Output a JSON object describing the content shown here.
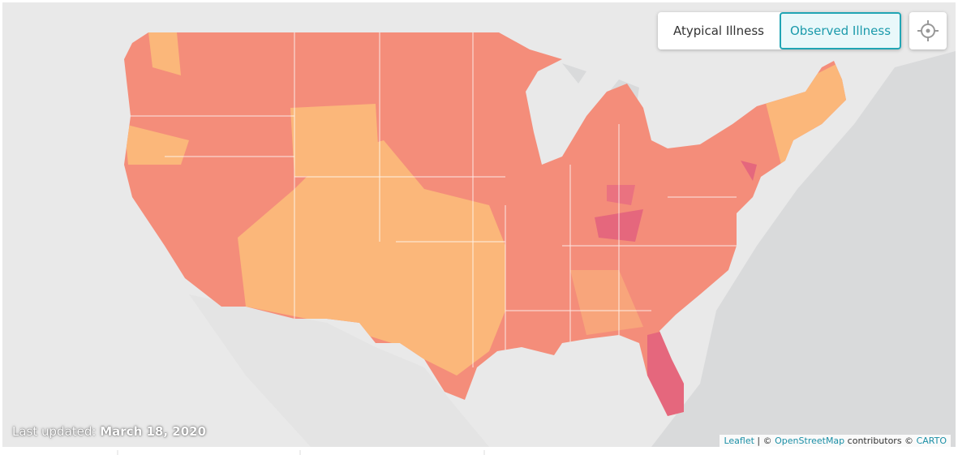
{
  "toggle": {
    "options": [
      "Atypical Illness",
      "Observed Illness"
    ]
  },
  "last_updated": {
    "label": "Last updated:",
    "date": "March 18, 2020"
  },
  "attribution": {
    "leaflet": "Leaflet",
    "separator": "|",
    "copyright": "©",
    "osm": "OpenStreetMap",
    "contributors": "contributors ©",
    "carto": "CARTO"
  }
}
